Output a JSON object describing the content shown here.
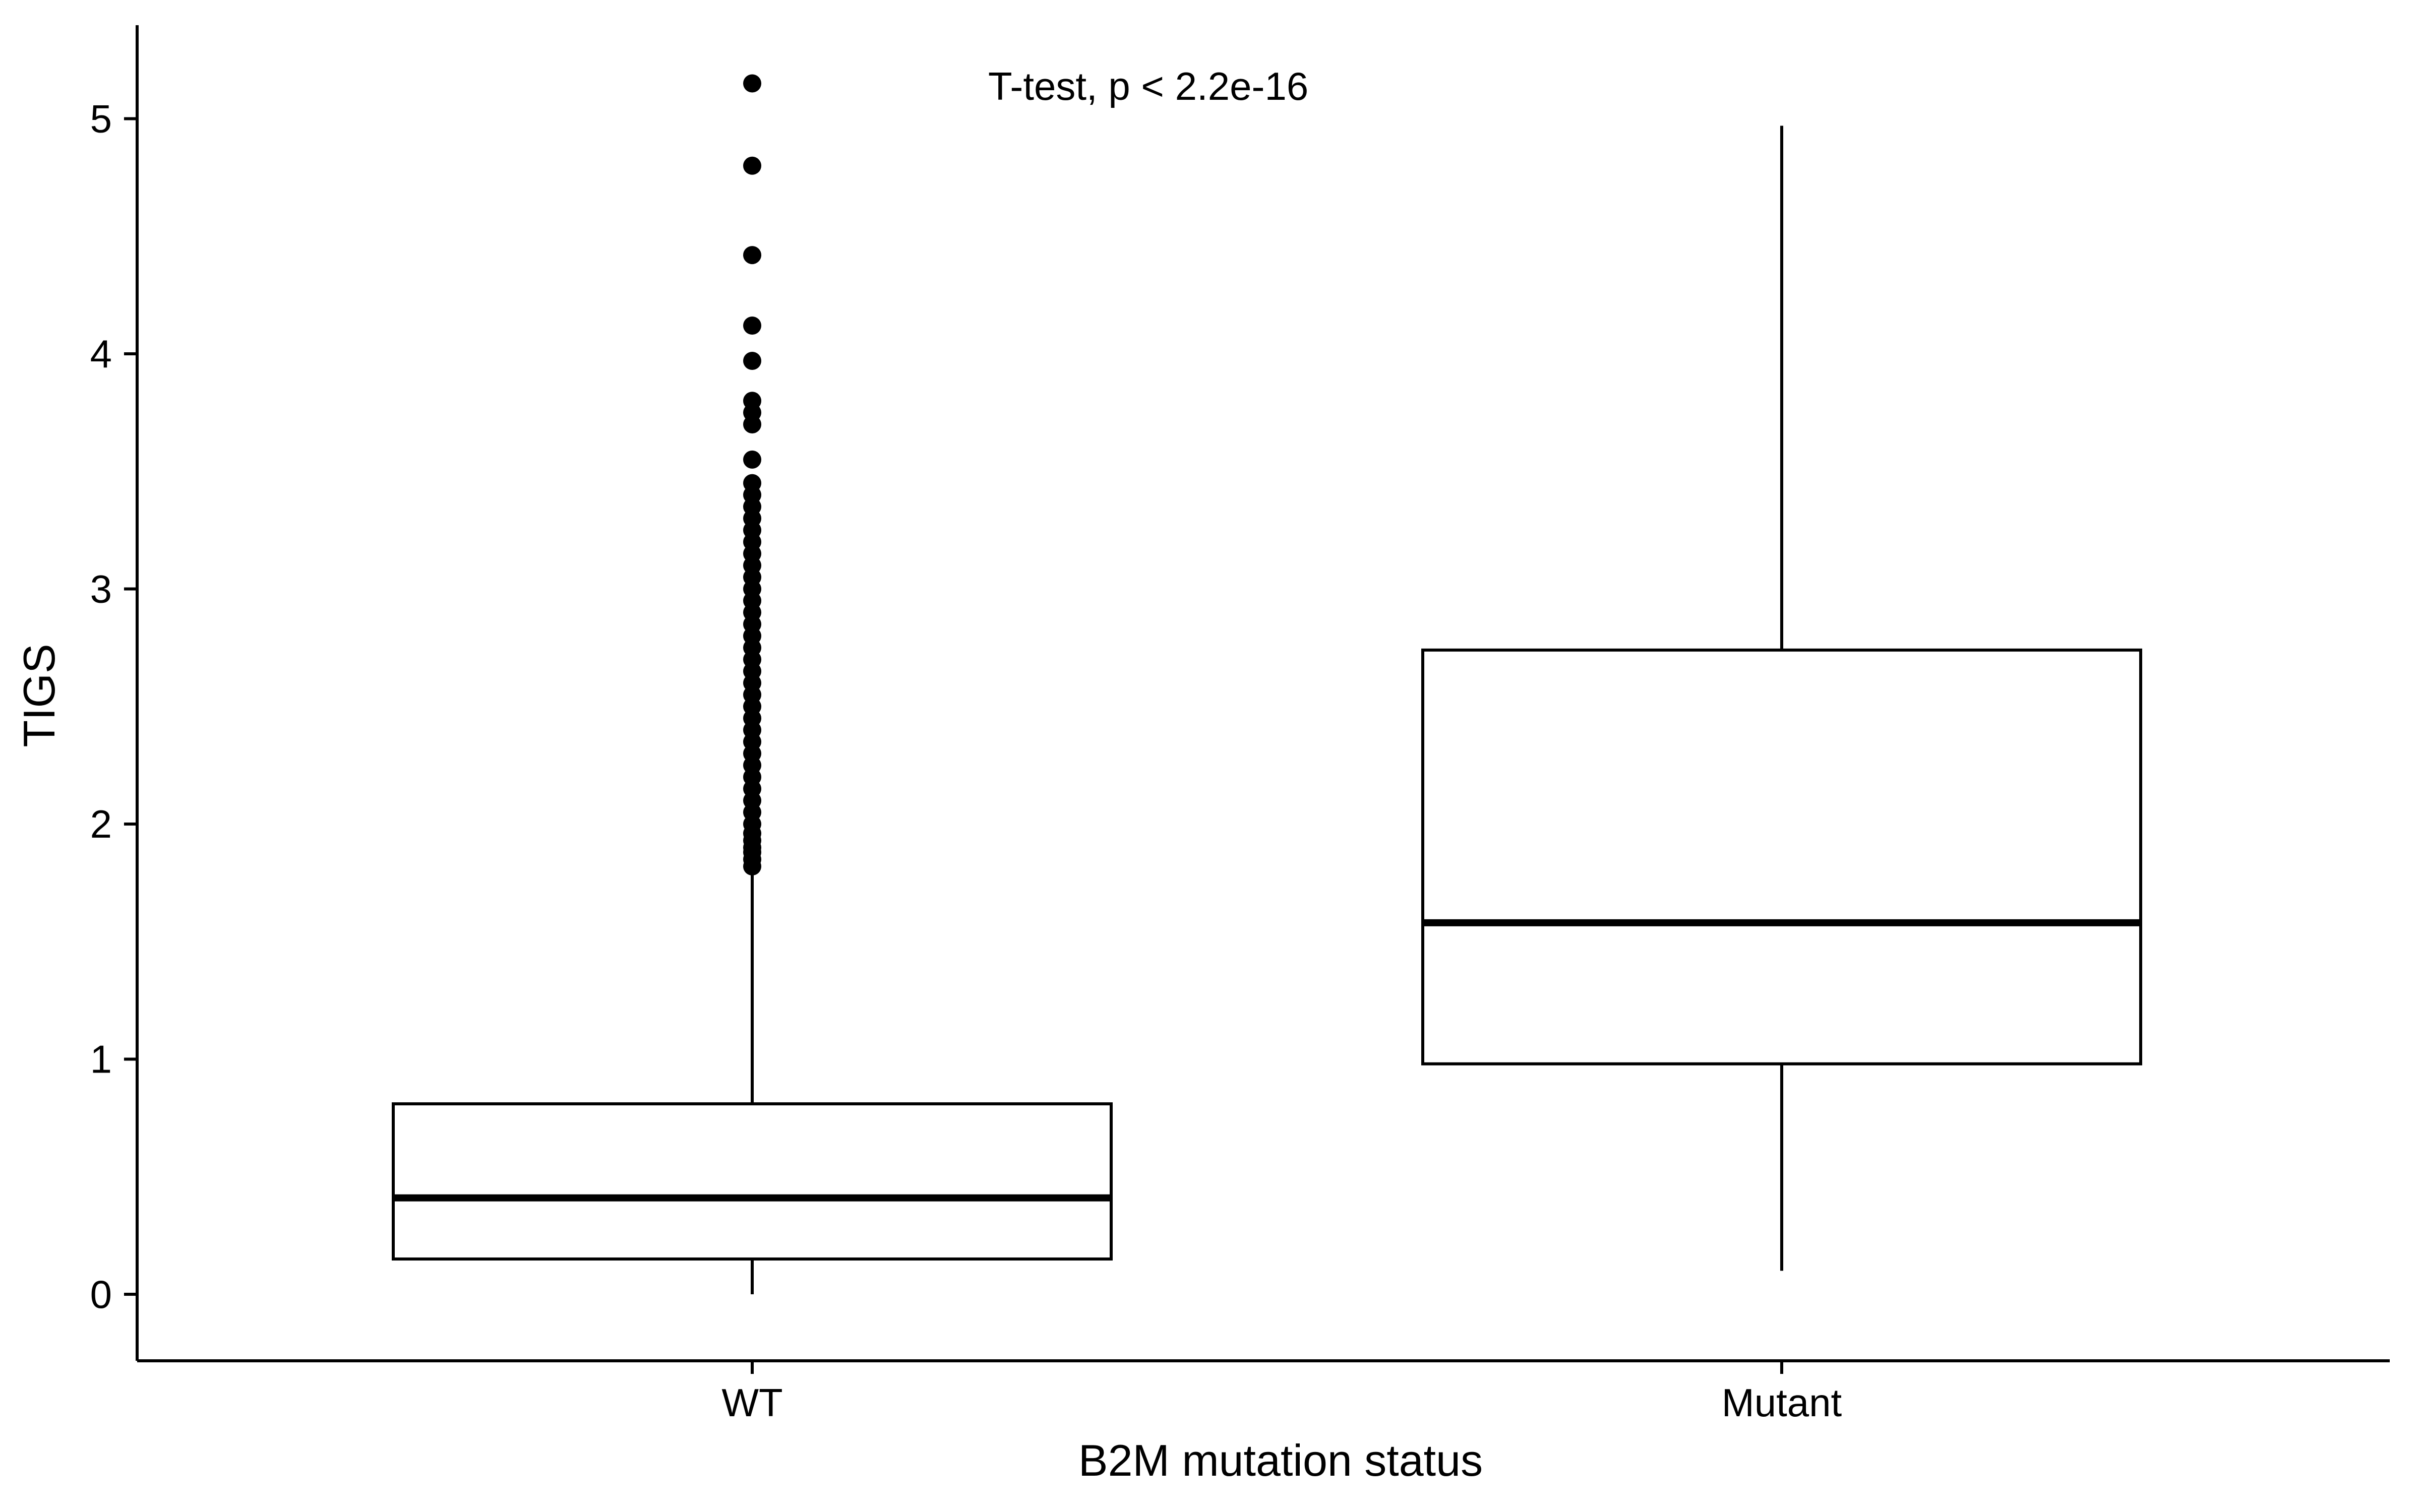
{
  "chart_data": {
    "type": "boxplot",
    "xlabel": "B2M mutation status",
    "ylabel": "TIGS",
    "ylim": [
      -0.25,
      5.4
    ],
    "yticks": [
      0,
      1,
      2,
      3,
      4,
      5
    ],
    "grid": false,
    "annotation": "T-test, p < 2.2e-16",
    "categories": [
      "WT",
      "Mutant"
    ],
    "boxes": [
      {
        "category": "WT",
        "whisker_low": 0.0,
        "q1": 0.15,
        "median": 0.41,
        "q3": 0.81,
        "whisker_high": 1.8,
        "outliers": [
          1.82,
          1.85,
          1.88,
          1.9,
          1.93,
          1.96,
          2.0,
          2.05,
          2.1,
          2.15,
          2.2,
          2.25,
          2.3,
          2.35,
          2.4,
          2.45,
          2.5,
          2.55,
          2.6,
          2.65,
          2.7,
          2.75,
          2.8,
          2.85,
          2.9,
          2.95,
          3.0,
          3.05,
          3.1,
          3.15,
          3.2,
          3.25,
          3.3,
          3.35,
          3.4,
          3.45,
          3.55,
          3.7,
          3.75,
          3.8,
          3.97,
          4.12,
          4.42,
          4.8,
          5.15
        ]
      },
      {
        "category": "Mutant",
        "whisker_low": 0.1,
        "q1": 0.98,
        "median": 1.58,
        "q3": 2.74,
        "whisker_high": 4.97,
        "outliers": []
      }
    ],
    "colors": {
      "stroke": "#000000",
      "fill": "#ffffff"
    }
  }
}
